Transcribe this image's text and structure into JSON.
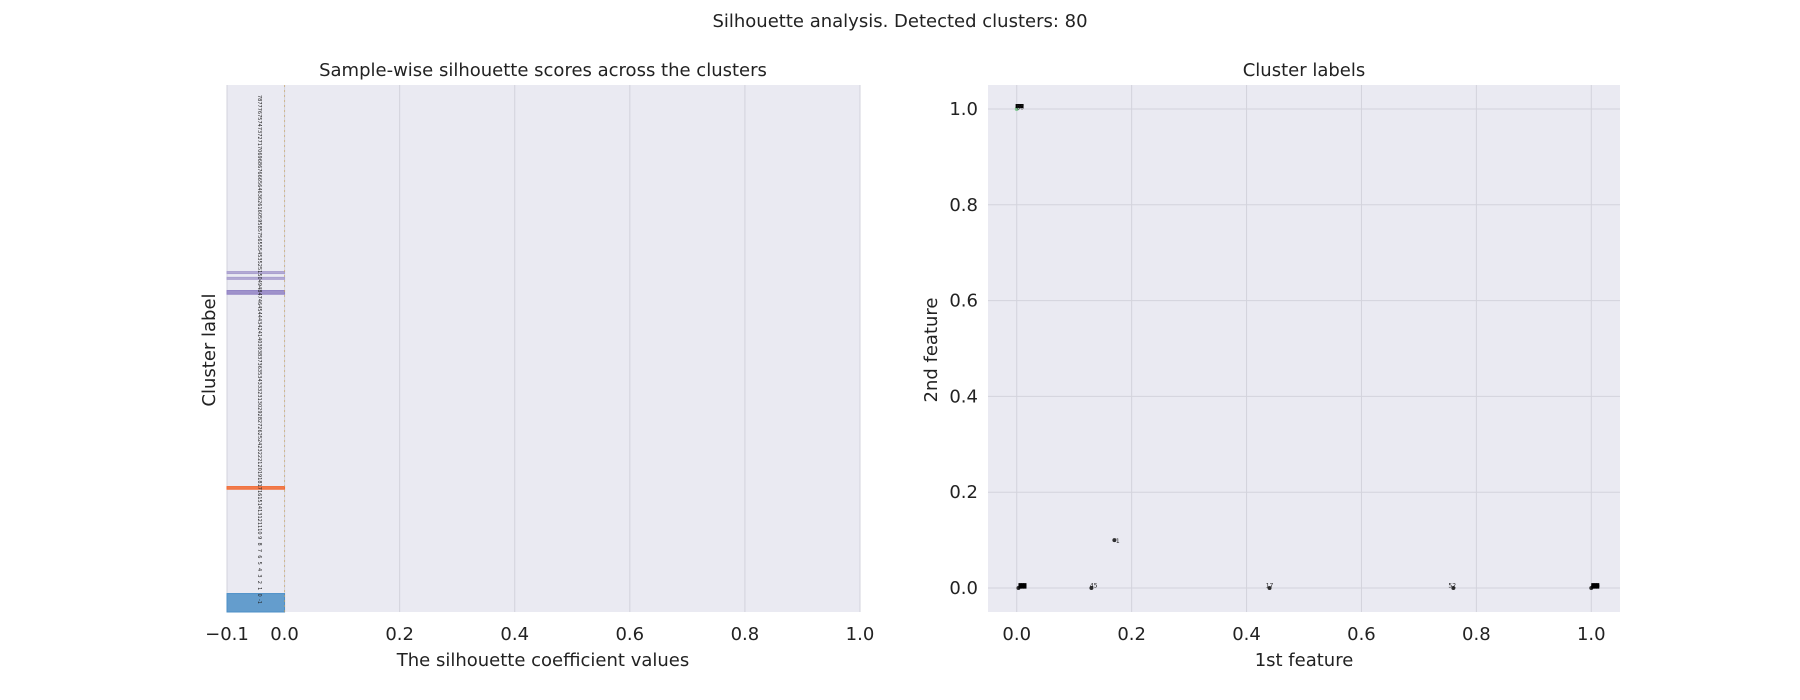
{
  "figure": {
    "suptitle": "Silhouette analysis. Detected clusters: 80"
  },
  "colors": {
    "axes_bg": "#eaeaf2",
    "grid": "#d3d3dc",
    "text": "#222222",
    "blue": "#4c8fc7",
    "orange": "#f26a33",
    "purple": "#9283c4",
    "lavender": "#aaa0cf",
    "green": "#6bbf7f",
    "black": "#000000"
  },
  "chart_data": [
    {
      "type": "bar",
      "subtype": "silhouette",
      "title": "Sample-wise silhouette scores across the clusters",
      "xlabel": "The silhouette coefficient values",
      "ylabel": "Cluster label",
      "xlim": [
        -0.1,
        1.0
      ],
      "xticks": [
        -0.1,
        0.0,
        0.2,
        0.4,
        0.6,
        0.8,
        1.0
      ],
      "xtick_labels": [
        "−0.1",
        "0.0",
        "0.2",
        "0.4",
        "0.6",
        "0.8",
        "1.0"
      ],
      "yticks": [],
      "grid": true,
      "silhouette_avg": 0.0,
      "bands": [
        {
          "label": "-1",
          "y_start": 0.0,
          "y_end": 0.035,
          "value": -0.1,
          "color": "blue"
        },
        {
          "label": "",
          "y_start": 0.233,
          "y_end": 0.238,
          "value": -0.1,
          "color": "orange"
        },
        {
          "label": "",
          "y_start": 0.603,
          "y_end": 0.61,
          "value": -0.1,
          "color": "purple"
        },
        {
          "label": "",
          "y_start": 0.632,
          "y_end": 0.635,
          "value": -0.1,
          "color": "lavender"
        },
        {
          "label": "",
          "y_start": 0.643,
          "y_end": 0.646,
          "value": -0.1,
          "color": "lavender"
        }
      ],
      "cluster_labels": [
        "-1",
        "0",
        "1",
        "2",
        "3",
        "4",
        "5",
        "6",
        "7",
        "8",
        "9",
        "10",
        "11",
        "12",
        "13",
        "14",
        "15",
        "16",
        "17",
        "18",
        "19",
        "20",
        "21",
        "22",
        "23",
        "24",
        "25",
        "26",
        "27",
        "28",
        "29",
        "30",
        "31",
        "32",
        "33",
        "34",
        "35",
        "36",
        "37",
        "38",
        "39",
        "40",
        "41",
        "42",
        "43",
        "44",
        "45",
        "46",
        "47",
        "48",
        "49",
        "50",
        "51",
        "52",
        "53",
        "54",
        "55",
        "56",
        "57",
        "58",
        "59",
        "60",
        "61",
        "62",
        "63",
        "64",
        "65",
        "66",
        "67",
        "68",
        "69",
        "70",
        "71",
        "72",
        "73",
        "74",
        "75",
        "76",
        "77",
        "78"
      ]
    },
    {
      "type": "scatter",
      "title": "Cluster labels",
      "xlabel": "1st feature",
      "ylabel": "2nd feature",
      "xlim": [
        -0.05,
        1.05
      ],
      "ylim": [
        -0.05,
        1.05
      ],
      "xticks": [
        0.0,
        0.2,
        0.4,
        0.6,
        0.8,
        1.0
      ],
      "xtick_labels": [
        "0.0",
        "0.2",
        "0.4",
        "0.6",
        "0.8",
        "1.0"
      ],
      "yticks": [
        0.0,
        0.2,
        0.4,
        0.6,
        0.8,
        1.0
      ],
      "ytick_labels": [
        "0.0",
        "0.2",
        "0.4",
        "0.6",
        "0.8",
        "1.0"
      ],
      "grid": true,
      "points": [
        {
          "x": 0.0,
          "y": 1.0,
          "color": "green"
        },
        {
          "x": 0.003,
          "y": 0.0,
          "color": "black"
        },
        {
          "x": 0.13,
          "y": 0.0,
          "color": "black"
        },
        {
          "x": 0.17,
          "y": 0.1,
          "color": "black"
        },
        {
          "x": 0.44,
          "y": 0.0,
          "color": "black"
        },
        {
          "x": 0.76,
          "y": 0.0,
          "color": "black"
        },
        {
          "x": 1.0,
          "y": 0.0,
          "color": "black"
        }
      ],
      "center_labels": [
        {
          "x": 0.006,
          "y": 1.003,
          "text": "80"
        },
        {
          "x": 0.134,
          "y": 0.005,
          "text": "45"
        },
        {
          "x": 0.174,
          "y": 0.098,
          "text": "-1"
        },
        {
          "x": 0.44,
          "y": 0.005,
          "text": "17"
        },
        {
          "x": 0.758,
          "y": 0.005,
          "text": "52"
        }
      ],
      "label_clusters": [
        {
          "x": 0.005,
          "y": 1.004,
          "count": 3
        },
        {
          "x": 0.01,
          "y": 0.004,
          "count": 6
        },
        {
          "x": 1.007,
          "y": 0.004,
          "count": 6
        }
      ]
    }
  ]
}
